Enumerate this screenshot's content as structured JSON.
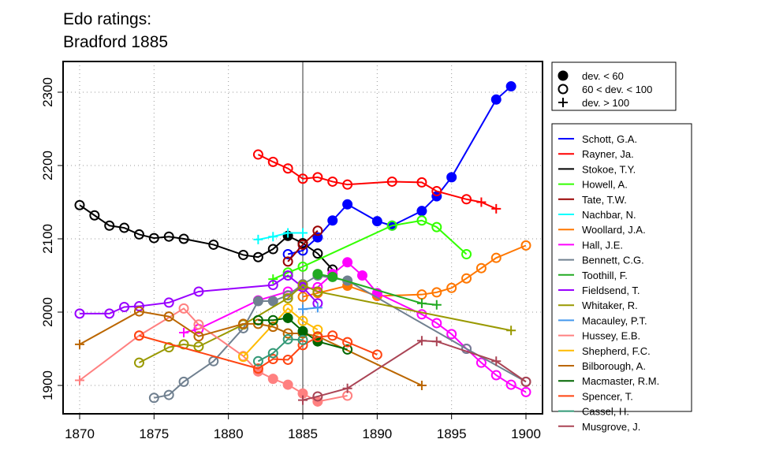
{
  "chart_data": {
    "type": "line",
    "title_lines": [
      "Edo ratings:",
      "Bradford 1885"
    ],
    "xlabel": "",
    "ylabel": "",
    "xlim": [
      1869,
      1901
    ],
    "ylim": [
      1860,
      2340
    ],
    "x_ticks": [
      1870,
      1875,
      1880,
      1885,
      1890,
      1895,
      1900
    ],
    "y_ticks": [
      1900,
      2000,
      2100,
      2200,
      2300
    ],
    "grid": true,
    "reference_line_x": 1885,
    "marker_legend": [
      {
        "marker": "filled",
        "label": "dev. < 60"
      },
      {
        "marker": "open",
        "label": "60 < dev. < 100"
      },
      {
        "marker": "plus",
        "label": "dev. > 100"
      }
    ],
    "legend_position": "right",
    "series": [
      {
        "name": "Schott, G.A.",
        "color": "#0000FF",
        "points": [
          [
            1884,
            2079,
            "o"
          ],
          [
            1885,
            2084,
            "o"
          ],
          [
            1886,
            2102,
            "f"
          ],
          [
            1887,
            2125,
            "f"
          ],
          [
            1888,
            2147,
            "f"
          ],
          [
            1890,
            2124,
            "f"
          ],
          [
            1891,
            2118,
            "f"
          ],
          [
            1893,
            2138,
            "f"
          ],
          [
            1894,
            2158,
            "f"
          ],
          [
            1895,
            2184,
            "f"
          ],
          [
            1898,
            2290,
            "f"
          ],
          [
            1899,
            2308,
            "f"
          ]
        ]
      },
      {
        "name": "Rayner, Ja.",
        "color": "#FF0000",
        "points": [
          [
            1882,
            2215,
            "o"
          ],
          [
            1883,
            2205,
            "o"
          ],
          [
            1884,
            2196,
            "o"
          ],
          [
            1885,
            2182,
            "o"
          ],
          [
            1886,
            2184,
            "o"
          ],
          [
            1887,
            2178,
            "o"
          ],
          [
            1888,
            2174,
            "o"
          ],
          [
            1891,
            2178,
            "o"
          ],
          [
            1893,
            2177,
            "o"
          ],
          [
            1894,
            2165,
            "o"
          ],
          [
            1896,
            2154,
            "o"
          ],
          [
            1897,
            2150,
            "p"
          ],
          [
            1898,
            2141,
            "p"
          ]
        ]
      },
      {
        "name": "Stokoe, T.Y.",
        "color": "#000000",
        "points": [
          [
            1870,
            2146,
            "o"
          ],
          [
            1871,
            2132,
            "o"
          ],
          [
            1872,
            2118,
            "o"
          ],
          [
            1873,
            2115,
            "o"
          ],
          [
            1874,
            2106,
            "o"
          ],
          [
            1875,
            2101,
            "o"
          ],
          [
            1876,
            2103,
            "o"
          ],
          [
            1877,
            2100,
            "o"
          ],
          [
            1879,
            2092,
            "o"
          ],
          [
            1881,
            2078,
            "o"
          ],
          [
            1882,
            2075,
            "o"
          ],
          [
            1883,
            2086,
            "o"
          ],
          [
            1884,
            2104,
            "f"
          ],
          [
            1885,
            2094,
            "o"
          ],
          [
            1886,
            2080,
            "o"
          ],
          [
            1887,
            2058,
            "o"
          ]
        ]
      },
      {
        "name": "Howell, A.",
        "color": "#33FF00",
        "points": [
          [
            1883,
            2045,
            "p"
          ],
          [
            1884,
            2054,
            "o"
          ],
          [
            1885,
            2062,
            "o"
          ],
          [
            1891,
            2118,
            "o"
          ],
          [
            1893,
            2125,
            "o"
          ],
          [
            1894,
            2116,
            "o"
          ],
          [
            1896,
            2079,
            "o"
          ]
        ]
      },
      {
        "name": "Tate, T.W.",
        "color": "#990000",
        "points": [
          [
            1884,
            2069,
            "o"
          ],
          [
            1885,
            2092,
            "o"
          ],
          [
            1886,
            2111,
            "o"
          ]
        ]
      },
      {
        "name": "Nachbar, N.",
        "color": "#00FFFF",
        "points": [
          [
            1882,
            2099,
            "p"
          ],
          [
            1883,
            2103,
            "p"
          ],
          [
            1884,
            2108,
            "p"
          ],
          [
            1885,
            2108,
            "p"
          ]
        ]
      },
      {
        "name": "Woollard, J.A.",
        "color": "#FF7700",
        "points": [
          [
            1885,
            2021,
            "o"
          ],
          [
            1886,
            2026,
            "o"
          ],
          [
            1888,
            2036,
            "f"
          ],
          [
            1890,
            2022,
            "f"
          ],
          [
            1893,
            2024,
            "o"
          ],
          [
            1894,
            2027,
            "o"
          ],
          [
            1895,
            2033,
            "o"
          ],
          [
            1896,
            2046,
            "o"
          ],
          [
            1897,
            2060,
            "o"
          ],
          [
            1898,
            2074,
            "o"
          ],
          [
            1900,
            2091,
            "o"
          ]
        ]
      },
      {
        "name": "Hall, J.E.",
        "color": "#FF00FF",
        "points": [
          [
            1877,
            1972,
            "p"
          ],
          [
            1878,
            1977,
            "o"
          ],
          [
            1882,
            2016,
            "o"
          ],
          [
            1884,
            2028,
            "o"
          ],
          [
            1886,
            2034,
            "o"
          ],
          [
            1887,
            2052,
            "f"
          ],
          [
            1888,
            2068,
            "f"
          ],
          [
            1889,
            2050,
            "f"
          ],
          [
            1890,
            2026,
            "f"
          ],
          [
            1893,
            1997,
            "o"
          ],
          [
            1894,
            1985,
            "o"
          ],
          [
            1895,
            1970,
            "o"
          ],
          [
            1896,
            1950,
            "o"
          ],
          [
            1897,
            1931,
            "o"
          ],
          [
            1898,
            1914,
            "o"
          ],
          [
            1899,
            1901,
            "o"
          ],
          [
            1900,
            1891,
            "o"
          ]
        ]
      },
      {
        "name": "Bennett, C.G.",
        "color": "#708090",
        "points": [
          [
            1875,
            1883,
            "o"
          ],
          [
            1876,
            1887,
            "o"
          ],
          [
            1877,
            1905,
            "o"
          ],
          [
            1879,
            1933,
            "o"
          ],
          [
            1881,
            1978,
            "o"
          ],
          [
            1882,
            2015,
            "f"
          ],
          [
            1883,
            2015,
            "f"
          ],
          [
            1884,
            2023,
            "o"
          ],
          [
            1885,
            2038,
            "f"
          ],
          [
            1886,
            2050,
            "f"
          ],
          [
            1888,
            2043,
            "f"
          ],
          [
            1896,
            1950,
            "o"
          ],
          [
            1900,
            1905,
            "o"
          ]
        ]
      },
      {
        "name": "Toothill, F.",
        "color": "#22AA22",
        "points": [
          [
            1886,
            2052,
            "f"
          ],
          [
            1887,
            2048,
            "f"
          ],
          [
            1893,
            2012,
            "p"
          ],
          [
            1894,
            2010,
            "p"
          ]
        ]
      },
      {
        "name": "Fieldsend, T.",
        "color": "#9900FF",
        "points": [
          [
            1870,
            1998,
            "o"
          ],
          [
            1872,
            1998,
            "o"
          ],
          [
            1873,
            2007,
            "o"
          ],
          [
            1874,
            2008,
            "o"
          ],
          [
            1876,
            2013,
            "o"
          ],
          [
            1878,
            2028,
            "o"
          ],
          [
            1883,
            2037,
            "o"
          ],
          [
            1884,
            2050,
            "o"
          ],
          [
            1885,
            2034,
            "o"
          ],
          [
            1886,
            2012,
            "o"
          ]
        ]
      },
      {
        "name": "Whitaker, R.",
        "color": "#999900",
        "points": [
          [
            1874,
            1931,
            "o"
          ],
          [
            1876,
            1952,
            "o"
          ],
          [
            1877,
            1956,
            "o"
          ],
          [
            1878,
            1953,
            "o"
          ],
          [
            1881,
            1983,
            "o"
          ],
          [
            1884,
            2019,
            "o"
          ],
          [
            1885,
            2037,
            "o"
          ],
          [
            1886,
            2028,
            "o"
          ],
          [
            1899,
            1975,
            "p"
          ]
        ]
      },
      {
        "name": "Macauley, P.T.",
        "color": "#4499EE",
        "points": [
          [
            1885,
            2004,
            "p"
          ],
          [
            1886,
            2006,
            "p"
          ]
        ]
      },
      {
        "name": "Hussey, E.B.",
        "color": "#FF8080",
        "points": [
          [
            1870,
            1907,
            "p"
          ],
          [
            1874,
            1968,
            "o"
          ],
          [
            1877,
            2005,
            "o"
          ],
          [
            1878,
            1983,
            "o"
          ],
          [
            1881,
            1940,
            "o"
          ],
          [
            1882,
            1919,
            "f"
          ],
          [
            1883,
            1909,
            "f"
          ],
          [
            1884,
            1901,
            "f"
          ],
          [
            1885,
            1889,
            "f"
          ],
          [
            1886,
            1878,
            "f"
          ],
          [
            1888,
            1886,
            "o"
          ]
        ]
      },
      {
        "name": "Shepherd, F.C.",
        "color": "#FFBB00",
        "points": [
          [
            1881,
            1939,
            "o"
          ],
          [
            1884,
            2005,
            "o"
          ],
          [
            1885,
            1988,
            "o"
          ],
          [
            1886,
            1976,
            "o"
          ]
        ]
      },
      {
        "name": "Bilborough, A.",
        "color": "#BB6600",
        "points": [
          [
            1870,
            1956,
            "p"
          ],
          [
            1874,
            2001,
            "o"
          ],
          [
            1876,
            1994,
            "o"
          ],
          [
            1878,
            1967,
            "o"
          ],
          [
            1881,
            1984,
            "o"
          ],
          [
            1882,
            1984,
            "o"
          ],
          [
            1883,
            1980,
            "o"
          ],
          [
            1884,
            1971,
            "o"
          ],
          [
            1885,
            1971,
            "o"
          ],
          [
            1886,
            1967,
            "o"
          ],
          [
            1893,
            1900,
            "p"
          ]
        ]
      },
      {
        "name": "Macmaster, R.M.",
        "color": "#006600",
        "points": [
          [
            1882,
            1989,
            "o"
          ],
          [
            1883,
            1989,
            "o"
          ],
          [
            1884,
            1992,
            "f"
          ],
          [
            1885,
            1974,
            "f"
          ],
          [
            1886,
            1960,
            "f"
          ],
          [
            1888,
            1949,
            "o"
          ]
        ]
      },
      {
        "name": "Spencer, T.",
        "color": "#FF4411",
        "points": [
          [
            1874,
            1968,
            "o"
          ],
          [
            1882,
            1923,
            "o"
          ],
          [
            1883,
            1936,
            "o"
          ],
          [
            1884,
            1935,
            "o"
          ],
          [
            1885,
            1955,
            "o"
          ],
          [
            1886,
            1966,
            "o"
          ],
          [
            1887,
            1968,
            "o"
          ],
          [
            1888,
            1959,
            "o"
          ],
          [
            1890,
            1942,
            "o"
          ]
        ]
      },
      {
        "name": "Cassel, H.",
        "color": "#339977",
        "points": [
          [
            1882,
            1933,
            "o"
          ],
          [
            1883,
            1944,
            "o"
          ],
          [
            1884,
            1963,
            "o"
          ],
          [
            1885,
            1962,
            "o"
          ]
        ]
      },
      {
        "name": "Musgrove, J.",
        "color": "#AA4455",
        "points": [
          [
            1885,
            1880,
            "p"
          ],
          [
            1886,
            1885,
            "o"
          ],
          [
            1888,
            1896,
            "p"
          ],
          [
            1893,
            1961,
            "p"
          ],
          [
            1894,
            1960,
            "p"
          ],
          [
            1898,
            1933,
            "p"
          ],
          [
            1900,
            1905,
            "o"
          ]
        ]
      }
    ]
  }
}
